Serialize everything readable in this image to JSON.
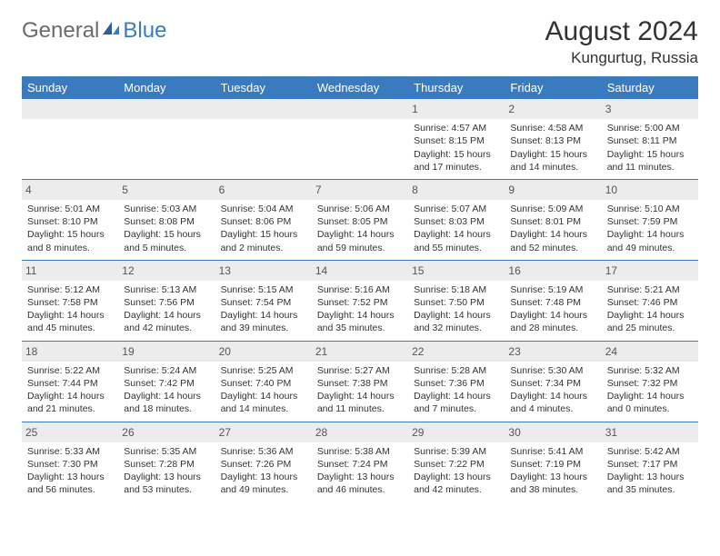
{
  "logo": {
    "general": "General",
    "blue": "Blue"
  },
  "title": "August 2024",
  "location": "Kungurtug, Russia",
  "colors": {
    "header_bg": "#3a7bbf",
    "header_text": "#ffffff",
    "daynum_bg": "#ececec",
    "border": "#3a7bbf",
    "text": "#333333",
    "logo_gray": "#6b6b6b",
    "logo_blue": "#3a7bbf"
  },
  "day_headers": [
    "Sunday",
    "Monday",
    "Tuesday",
    "Wednesday",
    "Thursday",
    "Friday",
    "Saturday"
  ],
  "weeks": [
    [
      null,
      null,
      null,
      null,
      {
        "n": "1",
        "sunrise": "Sunrise: 4:57 AM",
        "sunset": "Sunset: 8:15 PM",
        "daylight": "Daylight: 15 hours and 17 minutes."
      },
      {
        "n": "2",
        "sunrise": "Sunrise: 4:58 AM",
        "sunset": "Sunset: 8:13 PM",
        "daylight": "Daylight: 15 hours and 14 minutes."
      },
      {
        "n": "3",
        "sunrise": "Sunrise: 5:00 AM",
        "sunset": "Sunset: 8:11 PM",
        "daylight": "Daylight: 15 hours and 11 minutes."
      }
    ],
    [
      {
        "n": "4",
        "sunrise": "Sunrise: 5:01 AM",
        "sunset": "Sunset: 8:10 PM",
        "daylight": "Daylight: 15 hours and 8 minutes."
      },
      {
        "n": "5",
        "sunrise": "Sunrise: 5:03 AM",
        "sunset": "Sunset: 8:08 PM",
        "daylight": "Daylight: 15 hours and 5 minutes."
      },
      {
        "n": "6",
        "sunrise": "Sunrise: 5:04 AM",
        "sunset": "Sunset: 8:06 PM",
        "daylight": "Daylight: 15 hours and 2 minutes."
      },
      {
        "n": "7",
        "sunrise": "Sunrise: 5:06 AM",
        "sunset": "Sunset: 8:05 PM",
        "daylight": "Daylight: 14 hours and 59 minutes."
      },
      {
        "n": "8",
        "sunrise": "Sunrise: 5:07 AM",
        "sunset": "Sunset: 8:03 PM",
        "daylight": "Daylight: 14 hours and 55 minutes."
      },
      {
        "n": "9",
        "sunrise": "Sunrise: 5:09 AM",
        "sunset": "Sunset: 8:01 PM",
        "daylight": "Daylight: 14 hours and 52 minutes."
      },
      {
        "n": "10",
        "sunrise": "Sunrise: 5:10 AM",
        "sunset": "Sunset: 7:59 PM",
        "daylight": "Daylight: 14 hours and 49 minutes."
      }
    ],
    [
      {
        "n": "11",
        "sunrise": "Sunrise: 5:12 AM",
        "sunset": "Sunset: 7:58 PM",
        "daylight": "Daylight: 14 hours and 45 minutes."
      },
      {
        "n": "12",
        "sunrise": "Sunrise: 5:13 AM",
        "sunset": "Sunset: 7:56 PM",
        "daylight": "Daylight: 14 hours and 42 minutes."
      },
      {
        "n": "13",
        "sunrise": "Sunrise: 5:15 AM",
        "sunset": "Sunset: 7:54 PM",
        "daylight": "Daylight: 14 hours and 39 minutes."
      },
      {
        "n": "14",
        "sunrise": "Sunrise: 5:16 AM",
        "sunset": "Sunset: 7:52 PM",
        "daylight": "Daylight: 14 hours and 35 minutes."
      },
      {
        "n": "15",
        "sunrise": "Sunrise: 5:18 AM",
        "sunset": "Sunset: 7:50 PM",
        "daylight": "Daylight: 14 hours and 32 minutes."
      },
      {
        "n": "16",
        "sunrise": "Sunrise: 5:19 AM",
        "sunset": "Sunset: 7:48 PM",
        "daylight": "Daylight: 14 hours and 28 minutes."
      },
      {
        "n": "17",
        "sunrise": "Sunrise: 5:21 AM",
        "sunset": "Sunset: 7:46 PM",
        "daylight": "Daylight: 14 hours and 25 minutes."
      }
    ],
    [
      {
        "n": "18",
        "sunrise": "Sunrise: 5:22 AM",
        "sunset": "Sunset: 7:44 PM",
        "daylight": "Daylight: 14 hours and 21 minutes."
      },
      {
        "n": "19",
        "sunrise": "Sunrise: 5:24 AM",
        "sunset": "Sunset: 7:42 PM",
        "daylight": "Daylight: 14 hours and 18 minutes."
      },
      {
        "n": "20",
        "sunrise": "Sunrise: 5:25 AM",
        "sunset": "Sunset: 7:40 PM",
        "daylight": "Daylight: 14 hours and 14 minutes."
      },
      {
        "n": "21",
        "sunrise": "Sunrise: 5:27 AM",
        "sunset": "Sunset: 7:38 PM",
        "daylight": "Daylight: 14 hours and 11 minutes."
      },
      {
        "n": "22",
        "sunrise": "Sunrise: 5:28 AM",
        "sunset": "Sunset: 7:36 PM",
        "daylight": "Daylight: 14 hours and 7 minutes."
      },
      {
        "n": "23",
        "sunrise": "Sunrise: 5:30 AM",
        "sunset": "Sunset: 7:34 PM",
        "daylight": "Daylight: 14 hours and 4 minutes."
      },
      {
        "n": "24",
        "sunrise": "Sunrise: 5:32 AM",
        "sunset": "Sunset: 7:32 PM",
        "daylight": "Daylight: 14 hours and 0 minutes."
      }
    ],
    [
      {
        "n": "25",
        "sunrise": "Sunrise: 5:33 AM",
        "sunset": "Sunset: 7:30 PM",
        "daylight": "Daylight: 13 hours and 56 minutes."
      },
      {
        "n": "26",
        "sunrise": "Sunrise: 5:35 AM",
        "sunset": "Sunset: 7:28 PM",
        "daylight": "Daylight: 13 hours and 53 minutes."
      },
      {
        "n": "27",
        "sunrise": "Sunrise: 5:36 AM",
        "sunset": "Sunset: 7:26 PM",
        "daylight": "Daylight: 13 hours and 49 minutes."
      },
      {
        "n": "28",
        "sunrise": "Sunrise: 5:38 AM",
        "sunset": "Sunset: 7:24 PM",
        "daylight": "Daylight: 13 hours and 46 minutes."
      },
      {
        "n": "29",
        "sunrise": "Sunrise: 5:39 AM",
        "sunset": "Sunset: 7:22 PM",
        "daylight": "Daylight: 13 hours and 42 minutes."
      },
      {
        "n": "30",
        "sunrise": "Sunrise: 5:41 AM",
        "sunset": "Sunset: 7:19 PM",
        "daylight": "Daylight: 13 hours and 38 minutes."
      },
      {
        "n": "31",
        "sunrise": "Sunrise: 5:42 AM",
        "sunset": "Sunset: 7:17 PM",
        "daylight": "Daylight: 13 hours and 35 minutes."
      }
    ]
  ]
}
